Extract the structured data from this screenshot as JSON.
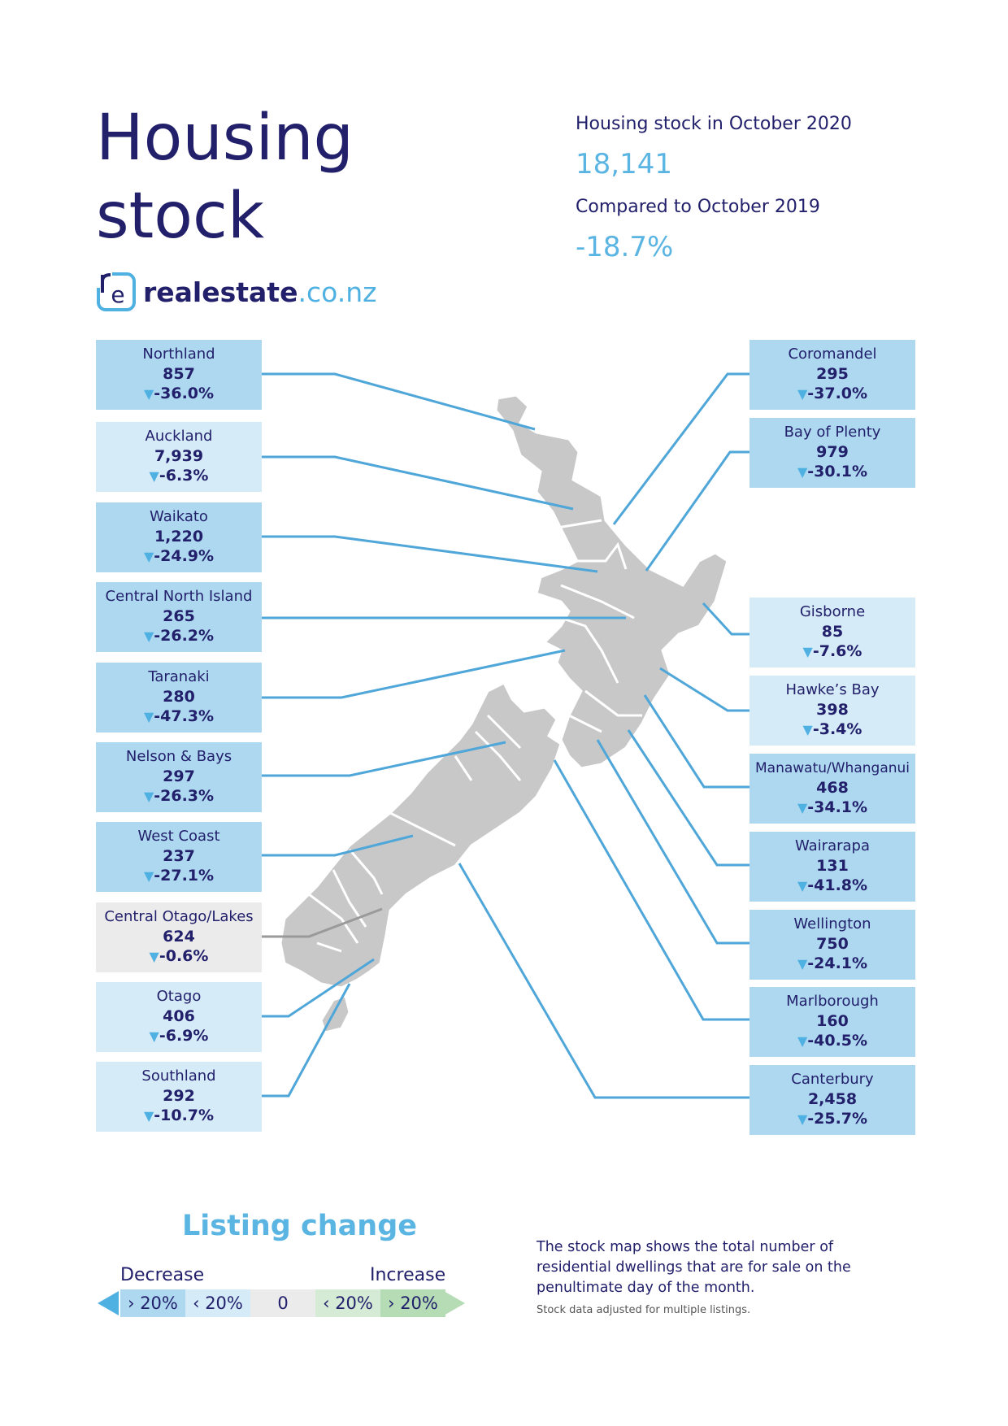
{
  "title": {
    "line1": "Housing",
    "line2": "stock"
  },
  "brand": {
    "mark": "re",
    "name": "realestate",
    "tld": ".co.nz"
  },
  "stats": {
    "stock_label": "Housing stock in October 2020",
    "stock_value": "18,141",
    "compare_label": "Compared to October 2019",
    "compare_value": "-18.7%"
  },
  "regions": {
    "northland": {
      "name": "Northland",
      "count": "857",
      "change": "-36.0%",
      "arrow": "▼"
    },
    "auckland": {
      "name": "Auckland",
      "count": "7,939",
      "change": "-6.3%",
      "arrow": "▼"
    },
    "waikato": {
      "name": "Waikato",
      "count": "1,220",
      "change": "-24.9%",
      "arrow": "▼"
    },
    "central_north_island": {
      "name": "Central North Island",
      "count": "265",
      "change": "-26.2%",
      "arrow": "▼"
    },
    "taranaki": {
      "name": "Taranaki",
      "count": "280",
      "change": "-47.3%",
      "arrow": "▼"
    },
    "nelson_bays": {
      "name": "Nelson & Bays",
      "count": "297",
      "change": "-26.3%",
      "arrow": "▼"
    },
    "west_coast": {
      "name": "West Coast",
      "count": "237",
      "change": "-27.1%",
      "arrow": "▼"
    },
    "central_otago_lakes": {
      "name": "Central Otago/Lakes",
      "count": "624",
      "change": "-0.6%",
      "arrow": "▼"
    },
    "otago": {
      "name": "Otago",
      "count": "406",
      "change": "-6.9%",
      "arrow": "▼"
    },
    "southland": {
      "name": "Southland",
      "count": "292",
      "change": "-10.7%",
      "arrow": "▼"
    },
    "coromandel": {
      "name": "Coromandel",
      "count": "295",
      "change": "-37.0%",
      "arrow": "▼"
    },
    "bay_of_plenty": {
      "name": "Bay of Plenty",
      "count": "979",
      "change": "-30.1%",
      "arrow": "▼"
    },
    "gisborne": {
      "name": "Gisborne",
      "count": "85",
      "change": "-7.6%",
      "arrow": "▼"
    },
    "hawkes_bay": {
      "name": "Hawke’s Bay",
      "count": "398",
      "change": "-3.4%",
      "arrow": "▼"
    },
    "manawatu_whanganui": {
      "name": "Manawatu/Whanganui",
      "count": "468",
      "change": "-34.1%",
      "arrow": "▼"
    },
    "wairarapa": {
      "name": "Wairarapa",
      "count": "131",
      "change": "-41.8%",
      "arrow": "▼"
    },
    "wellington": {
      "name": "Wellington",
      "count": "750",
      "change": "-24.1%",
      "arrow": "▼"
    },
    "marlborough": {
      "name": "Marlborough",
      "count": "160",
      "change": "-40.5%",
      "arrow": "▼"
    },
    "canterbury": {
      "name": "Canterbury",
      "count": "2,458",
      "change": "-25.7%",
      "arrow": "▼"
    }
  },
  "legend": {
    "title": "Listing change",
    "decrease": "Decrease",
    "increase": "Increase",
    "segments": [
      "› 20%",
      "‹ 20%",
      "0",
      "‹ 20%",
      "› 20%"
    ],
    "colors": {
      "dark_blue": "#add8f0",
      "light_blue": "#d6ebf8",
      "grey": "#ebebeb",
      "light_green": "#d6ebd6",
      "dark_green": "#b5dcb5"
    }
  },
  "note": {
    "main": "The stock map shows the total number of residential dwellings that are for sale on the penultimate day of the month.",
    "small": "Stock data adjusted for multiple listings."
  },
  "colors": {
    "navy": "#22206b",
    "accent_blue": "#4fb0e2",
    "map_grey": "#c8c8c8"
  }
}
